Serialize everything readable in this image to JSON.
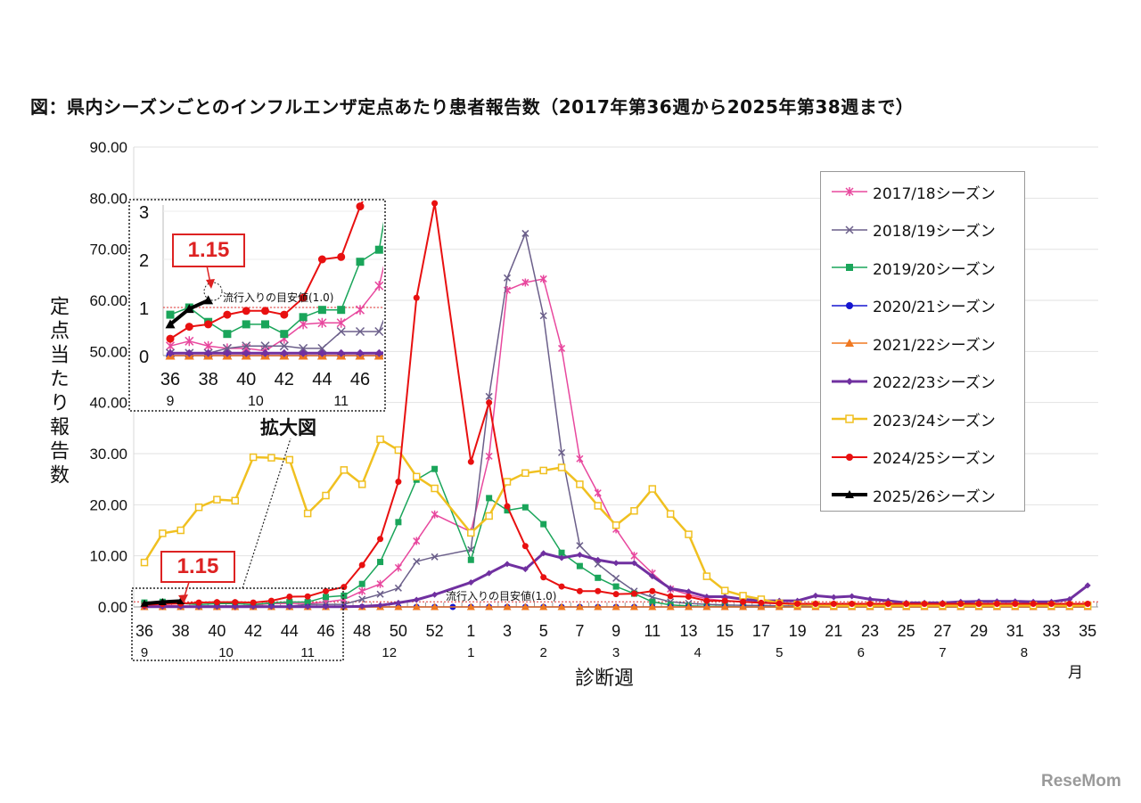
{
  "title": "図：県内シーズンごとのインフルエンザ定点あたり患者報告数（2017年第36週から2025年第38週まで）",
  "watermark": "ReseMom",
  "chart_data": {
    "type": "line",
    "xlabel": "診断週",
    "ylabel": "定点当たり報告数",
    "month_unit": "月",
    "ylim": [
      0,
      90
    ],
    "yticks": [
      "0.00",
      "10.00",
      "20.00",
      "30.00",
      "40.00",
      "50.00",
      "60.00",
      "70.00",
      "80.00",
      "90.00"
    ],
    "grid": true,
    "legend_position": "top-right",
    "x": [
      "36",
      "37",
      "38",
      "39",
      "40",
      "41",
      "42",
      "43",
      "44",
      "45",
      "46",
      "47",
      "48",
      "49",
      "50",
      "51",
      "52",
      "53",
      "1",
      "2",
      "3",
      "4",
      "5",
      "6",
      "7",
      "8",
      "9",
      "10",
      "11",
      "12",
      "13",
      "14",
      "15",
      "16",
      "17",
      "18",
      "19",
      "20",
      "21",
      "22",
      "23",
      "24",
      "25",
      "26",
      "27",
      "28",
      "29",
      "30",
      "31",
      "32",
      "33",
      "34",
      "35"
    ],
    "xtick_labels": [
      "36",
      "38",
      "40",
      "42",
      "44",
      "46",
      "48",
      "50",
      "52",
      "1",
      "3",
      "5",
      "7",
      "9",
      "11",
      "13",
      "15",
      "17",
      "19",
      "21",
      "23",
      "25",
      "27",
      "29",
      "31",
      "33",
      "35"
    ],
    "month_labels": [
      {
        "label": "9",
        "week": "36"
      },
      {
        "label": "10",
        "week": "40.5"
      },
      {
        "label": "11",
        "week": "45"
      },
      {
        "label": "12",
        "week": "49.5"
      },
      {
        "label": "1",
        "week": "1"
      },
      {
        "label": "2",
        "week": "5"
      },
      {
        "label": "3",
        "week": "9"
      },
      {
        "label": "4",
        "week": "13.5"
      },
      {
        "label": "5",
        "week": "18"
      },
      {
        "label": "6",
        "week": "22.5"
      },
      {
        "label": "7",
        "week": "27"
      },
      {
        "label": "8",
        "week": "31.5"
      }
    ],
    "threshold": {
      "value": 1.0,
      "label": "流行入りの目安値(1.0)",
      "color": "#e03030"
    },
    "callout": {
      "value_label": "1.15",
      "week": "38"
    },
    "inset": {
      "title": "拡大図",
      "ylim": [
        0,
        3
      ],
      "yticks": [
        "0",
        "1",
        "2",
        "3"
      ],
      "xtick_labels": [
        "36",
        "38",
        "40",
        "42",
        "44",
        "46"
      ],
      "month_labels": [
        "9",
        "10",
        "11"
      ],
      "week_range": [
        "36",
        "47"
      ]
    },
    "series": [
      {
        "name": "2017/18シーズン",
        "color": "#e8489e",
        "marker": "asterisk",
        "values": [
          0.2,
          0.3,
          0.2,
          0.15,
          0.15,
          0.1,
          0.35,
          0.65,
          0.68,
          0.68,
          0.95,
          1.45,
          3.1,
          4.5,
          7.7,
          12.9,
          18.1,
          null,
          14.7,
          29.5,
          62.0,
          63.5,
          64.2,
          50.6,
          29.0,
          22.3,
          15.2,
          10.0,
          6.6,
          3.5,
          2.4,
          1.6,
          1.2,
          1.0,
          0.8,
          0.6,
          0.5,
          0.5,
          0.4,
          0.4,
          0.4,
          0.3,
          0.3,
          0.3,
          0.3,
          0.3,
          0.3,
          0.3,
          0.3,
          0.3,
          0.3,
          0.3,
          0.3
        ]
      },
      {
        "name": "2018/19シーズン",
        "color": "#6b5f8a",
        "marker": "x",
        "values": [
          0.05,
          0.05,
          0.05,
          0.15,
          0.2,
          0.2,
          0.2,
          0.15,
          0.15,
          0.5,
          0.5,
          0.5,
          1.5,
          2.5,
          3.7,
          8.9,
          9.8,
          null,
          11.2,
          41.2,
          64.4,
          73.1,
          57.0,
          30.2,
          12.0,
          8.4,
          5.6,
          3.1,
          1.9,
          1.0,
          0.7,
          0.5,
          0.4,
          0.3,
          0.3,
          0.2,
          0.2,
          0.2,
          0.2,
          0.2,
          0.2,
          0.2,
          0.2,
          0.2,
          0.2,
          0.2,
          0.2,
          0.2,
          0.2,
          0.2,
          0.2,
          0.2,
          0.2
        ]
      },
      {
        "name": "2019/20シーズン",
        "color": "#1aa55a",
        "marker": "square",
        "values": [
          0.85,
          1.0,
          0.7,
          0.45,
          0.65,
          0.65,
          0.45,
          0.8,
          0.95,
          0.95,
          1.95,
          2.2,
          4.5,
          8.8,
          16.6,
          24.9,
          27.0,
          null,
          9.2,
          21.3,
          18.9,
          19.5,
          16.2,
          10.6,
          8.0,
          5.7,
          4.0,
          2.6,
          1.0,
          0.4,
          0.2,
          0.1,
          0.1,
          0,
          0,
          0,
          0,
          0,
          0,
          0,
          0,
          0,
          0,
          0,
          0,
          0,
          0,
          0,
          0,
          0,
          0,
          0,
          0
        ]
      },
      {
        "name": "2020/21シーズン",
        "color": "#1515d0",
        "marker": "circle",
        "values": [
          0,
          0,
          0,
          0,
          0,
          0,
          0,
          0,
          0,
          0,
          0,
          0,
          0,
          0,
          0,
          0,
          0,
          0,
          0,
          0,
          0,
          0,
          0,
          0,
          0,
          0,
          0,
          0,
          0,
          0,
          0,
          0,
          0,
          0,
          0,
          0,
          0,
          0,
          0,
          0,
          0,
          0,
          0,
          0,
          0,
          0,
          0,
          0,
          0,
          0,
          0,
          0,
          0
        ]
      },
      {
        "name": "2021/22シーズン",
        "color": "#f07820",
        "marker": "triangle",
        "values": [
          0,
          0,
          0,
          0,
          0,
          0,
          0,
          0,
          0,
          0,
          0,
          0,
          0,
          0,
          0,
          0,
          0,
          null,
          0,
          0,
          0,
          0,
          0,
          0,
          0,
          0,
          0,
          0,
          0,
          0,
          0,
          0,
          0,
          0,
          0,
          0,
          0,
          0,
          0,
          0,
          0,
          0,
          0,
          0,
          0,
          0,
          0,
          0,
          0,
          0,
          0,
          0,
          0
        ]
      },
      {
        "name": "2022/23シーズン",
        "color": "#7030a0",
        "marker": "diamond",
        "values": [
          0.05,
          0.05,
          0.05,
          0.05,
          0.05,
          0.05,
          0.05,
          0.05,
          0.05,
          0.05,
          0.05,
          0.05,
          0.1,
          0.3,
          0.8,
          1.4,
          2.4,
          null,
          4.8,
          6.6,
          8.4,
          7.4,
          10.5,
          9.6,
          10.2,
          9.2,
          8.6,
          8.6,
          6.0,
          3.6,
          3.0,
          2.0,
          2.0,
          1.5,
          1.2,
          1.2,
          1.2,
          2.2,
          1.9,
          2.1,
          1.5,
          1.2,
          0.8,
          0.8,
          0.8,
          1.0,
          1.1,
          1.1,
          1.1,
          1.0,
          1.0,
          1.5,
          4.2
        ]
      },
      {
        "name": "2023/24シーズン",
        "color": "#f0c020",
        "marker": "hollow-square",
        "values": [
          8.7,
          14.4,
          15.0,
          19.5,
          21.0,
          20.8,
          29.3,
          29.2,
          28.8,
          18.3,
          21.8,
          26.8,
          24.0,
          32.8,
          30.7,
          25.5,
          23.2,
          null,
          14.5,
          17.8,
          24.5,
          26.2,
          26.7,
          27.3,
          24.0,
          19.8,
          16.0,
          18.8,
          23.1,
          18.2,
          14.2,
          6.0,
          3.2,
          2.2,
          1.5,
          0.7,
          0.5,
          0.4,
          0.3,
          0.3,
          0.3,
          0.3,
          0.3,
          0.3,
          0.3,
          0.3,
          0.3,
          0.3,
          0.3,
          0.3,
          0.3,
          0.3,
          0.3
        ]
      },
      {
        "name": "2024/25シーズン",
        "color": "#e81010",
        "marker": "circle",
        "values": [
          0.35,
          0.6,
          0.65,
          0.85,
          0.93,
          0.93,
          0.85,
          1.2,
          2.0,
          2.05,
          3.1,
          3.9,
          8.2,
          13.3,
          24.5,
          60.5,
          79.0,
          null,
          28.4,
          40.0,
          19.7,
          11.9,
          5.8,
          4.0,
          3.1,
          3.1,
          2.5,
          2.6,
          3.1,
          2.1,
          2.0,
          1.2,
          1.2,
          1.0,
          0.8,
          0.7,
          0.6,
          0.6,
          0.6,
          0.6,
          0.6,
          0.6,
          0.6,
          0.6,
          0.6,
          0.6,
          0.6,
          0.6,
          0.6,
          0.6,
          0.6,
          0.6,
          0.6
        ]
      },
      {
        "name": "2025/26シーズン",
        "color": "#000000",
        "marker": "triangle",
        "values": [
          0.65,
          0.97,
          1.15,
          null,
          null,
          null,
          null,
          null,
          null,
          null,
          null,
          null,
          null,
          null,
          null,
          null,
          null,
          null,
          null,
          null,
          null,
          null,
          null,
          null,
          null,
          null,
          null,
          null,
          null,
          null,
          null,
          null,
          null,
          null,
          null,
          null,
          null,
          null,
          null,
          null,
          null,
          null,
          null,
          null,
          null,
          null,
          null,
          null,
          null,
          null,
          null,
          null,
          null
        ]
      }
    ]
  }
}
